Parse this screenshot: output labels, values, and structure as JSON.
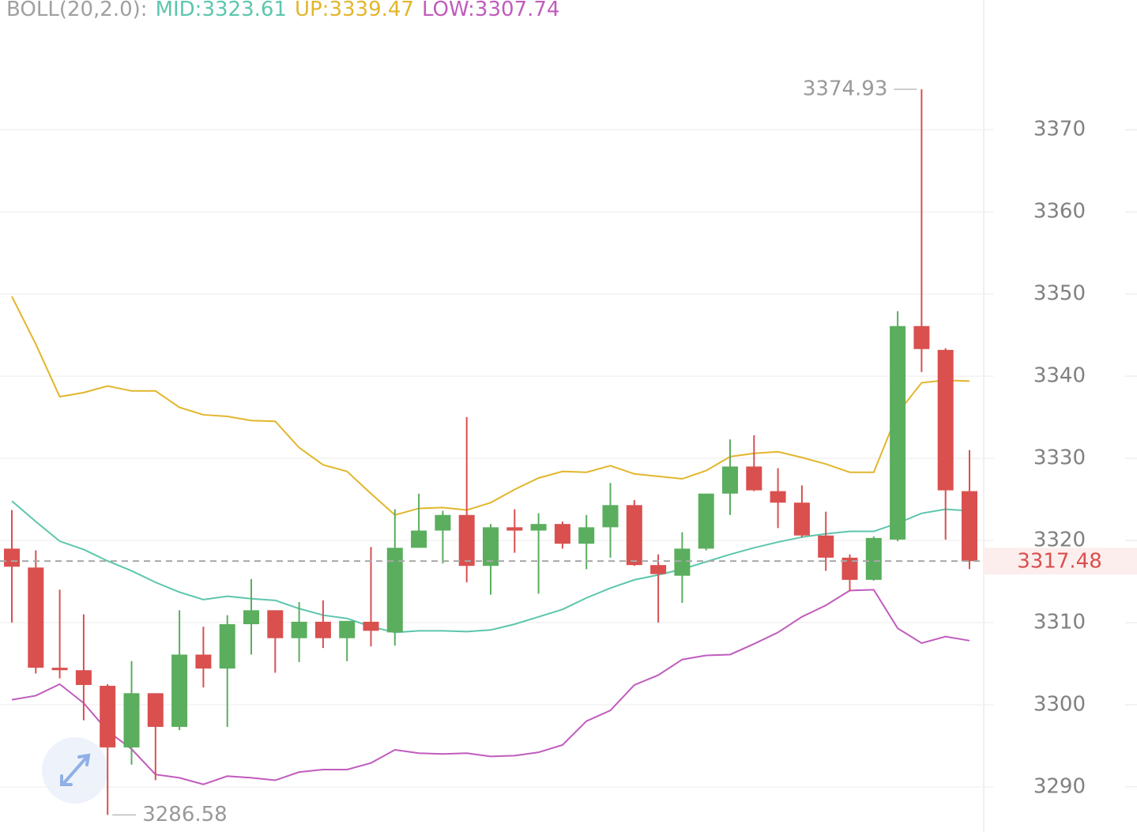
{
  "chart_data": {
    "type": "candlestick",
    "indicator_name": "BOLL(20,2.0):",
    "overlays": [
      {
        "label": "MID:3323.61",
        "color": "#5cc6ad",
        "values": [
          3324.8,
          3322.3,
          3319.9,
          3318.9,
          3317.5,
          3316.3,
          3314.9,
          3313.7,
          3312.8,
          3313.2,
          3312.9,
          3312.7,
          3311.7,
          3310.9,
          3310.5,
          3309.5,
          3308.8,
          3309.0,
          3309.0,
          3308.9,
          3309.1,
          3309.8,
          3310.7,
          3311.6,
          3313.0,
          3314.2,
          3315.2,
          3315.8,
          3316.5,
          3317.4,
          3318.3,
          3319.1,
          3319.8,
          3320.4,
          3320.8,
          3321.1,
          3321.1,
          3322.1,
          3323.3,
          3323.8,
          3323.6
        ]
      },
      {
        "label": "UP:3339.47",
        "color": "#e2b62c",
        "values": [
          3349.7,
          3343.9,
          3337.5,
          3338.0,
          3338.8,
          3338.2,
          3338.2,
          3336.2,
          3335.3,
          3335.1,
          3334.6,
          3334.5,
          3331.3,
          3329.2,
          3328.4,
          3325.7,
          3323.1,
          3323.9,
          3324.0,
          3323.7,
          3324.6,
          3326.2,
          3327.6,
          3328.4,
          3328.3,
          3329.1,
          3328.1,
          3327.8,
          3327.5,
          3328.5,
          3330.2,
          3330.6,
          3330.8,
          3330.1,
          3329.3,
          3328.3,
          3328.3,
          3335.5,
          3339.2,
          3339.5,
          3339.4
        ]
      },
      {
        "label": "LOW:3307.74",
        "color": "#c05cbd",
        "values": [
          3300.6,
          3301.1,
          3302.5,
          3300.2,
          3296.8,
          3294.6,
          3291.5,
          3291.1,
          3290.3,
          3291.3,
          3291.1,
          3290.8,
          3291.8,
          3292.1,
          3292.1,
          3292.9,
          3294.5,
          3294.1,
          3294.0,
          3294.1,
          3293.7,
          3293.8,
          3294.2,
          3295.1,
          3298.0,
          3299.3,
          3302.4,
          3303.6,
          3305.5,
          3306.0,
          3306.1,
          3307.4,
          3308.8,
          3310.7,
          3312.1,
          3313.9,
          3314.0,
          3309.3,
          3307.5,
          3308.3,
          3307.8
        ]
      }
    ],
    "open": [
      3319.0,
      3316.7,
      3304.5,
      3304.2,
      3302.3,
      3294.8,
      3301.4,
      3297.3,
      3306.1,
      3304.4,
      3309.8,
      3311.5,
      3308.1,
      3310.1,
      3308.1,
      3310.1,
      3308.8,
      3319.1,
      3321.2,
      3323.1,
      3316.9,
      3321.6,
      3321.2,
      3322.0,
      3319.6,
      3321.6,
      3324.3,
      3317.0,
      3315.7,
      3319.0,
      3325.7,
      3329.0,
      3326.0,
      3324.6,
      3320.6,
      3317.9,
      3315.2,
      3320.1,
      3346.1,
      3343.2,
      3326.0
    ],
    "high": [
      3323.7,
      3318.8,
      3314.0,
      3311.0,
      3302.5,
      3305.3,
      3301.4,
      3311.5,
      3309.5,
      3310.9,
      3315.3,
      3311.5,
      3312.5,
      3312.7,
      3310.2,
      3319.2,
      3323.8,
      3325.7,
      3323.6,
      3335.0,
      3322.0,
      3323.8,
      3323.3,
      3322.3,
      3323.1,
      3327.0,
      3324.9,
      3318.3,
      3321.0,
      3325.7,
      3332.3,
      3332.8,
      3328.8,
      3326.7,
      3323.5,
      3318.3,
      3320.5,
      3347.9,
      3374.93,
      3343.4,
      3331.0
    ],
    "low": [
      3310.0,
      3303.8,
      3303.2,
      3298.1,
      3286.58,
      3292.7,
      3290.8,
      3296.9,
      3302.1,
      3297.3,
      3306.1,
      3303.9,
      3305.2,
      3306.9,
      3305.3,
      3307.1,
      3307.2,
      3319.1,
      3317.2,
      3314.9,
      3313.4,
      3318.5,
      3313.5,
      3319.0,
      3316.5,
      3317.9,
      3316.9,
      3310.0,
      3312.4,
      3318.8,
      3323.1,
      3326.0,
      3321.5,
      3320.4,
      3316.3,
      3313.8,
      3315.1,
      3319.9,
      3340.5,
      3320.1,
      3316.5
    ],
    "close": [
      3316.8,
      3304.5,
      3304.2,
      3302.4,
      3294.8,
      3301.4,
      3297.3,
      3306.1,
      3304.4,
      3309.8,
      3311.5,
      3308.1,
      3310.1,
      3308.1,
      3310.2,
      3309.0,
      3319.1,
      3321.2,
      3323.1,
      3316.9,
      3321.6,
      3321.2,
      3322.0,
      3319.6,
      3321.6,
      3324.3,
      3317.0,
      3315.9,
      3319.0,
      3325.7,
      3329.0,
      3326.1,
      3324.6,
      3320.6,
      3317.9,
      3315.2,
      3320.3,
      3346.1,
      3343.3,
      3326.1,
      3317.48
    ],
    "up_color": "#5aae5e",
    "down_color": "#d9504f",
    "ylim": [
      3284.5,
      3385.8
    ],
    "yticks": [
      3290,
      3300,
      3310,
      3320,
      3330,
      3340,
      3350,
      3360,
      3370
    ],
    "grid": true
  }
}
